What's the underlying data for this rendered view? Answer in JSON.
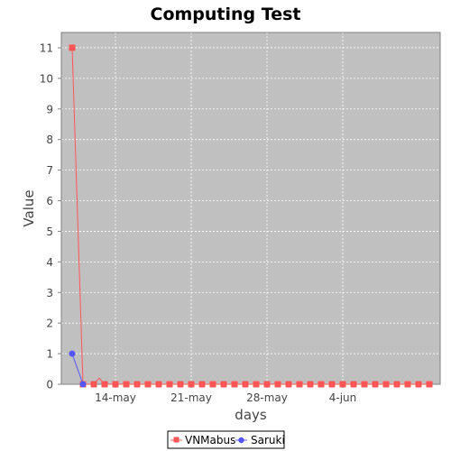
{
  "chart_data": {
    "type": "line",
    "title": "Computing Test",
    "xlabel": "days",
    "ylabel": "Value",
    "ylim": [
      0,
      11.5
    ],
    "y_ticks": [
      0,
      1,
      2,
      3,
      4,
      5,
      6,
      7,
      8,
      9,
      10,
      11
    ],
    "x_range": [
      "2024-05-09",
      "2024-06-13"
    ],
    "x_ticks": [
      {
        "date": "2024-05-14",
        "label": "14-may"
      },
      {
        "date": "2024-05-21",
        "label": "21-may"
      },
      {
        "date": "2024-05-28",
        "label": "28-may"
      },
      {
        "date": "2024-06-04",
        "label": "4-jun"
      }
    ],
    "grid": true,
    "legend_position": "bottom",
    "plot_background": "#c0c0c0",
    "series": [
      {
        "name": "VNMabus",
        "color": "#ff5555",
        "marker": "square",
        "points": [
          {
            "x": "2024-05-10",
            "y": 11
          },
          {
            "x": "2024-05-11",
            "y": 0
          },
          {
            "x": "2024-05-12",
            "y": 0
          },
          {
            "x": "2024-05-12T12:00",
            "y": 0.2
          },
          {
            "x": "2024-05-13",
            "y": 0
          },
          {
            "x": "2024-05-14",
            "y": 0
          },
          {
            "x": "2024-05-15",
            "y": 0
          },
          {
            "x": "2024-05-16",
            "y": 0
          },
          {
            "x": "2024-05-17",
            "y": 0
          },
          {
            "x": "2024-05-18",
            "y": 0
          },
          {
            "x": "2024-05-19",
            "y": 0
          },
          {
            "x": "2024-05-20",
            "y": 0
          },
          {
            "x": "2024-05-21",
            "y": 0
          },
          {
            "x": "2024-05-22",
            "y": 0
          },
          {
            "x": "2024-05-23",
            "y": 0
          },
          {
            "x": "2024-05-24",
            "y": 0
          },
          {
            "x": "2024-05-25",
            "y": 0
          },
          {
            "x": "2024-05-26",
            "y": 0
          },
          {
            "x": "2024-05-27",
            "y": 0
          },
          {
            "x": "2024-05-28",
            "y": 0
          },
          {
            "x": "2024-05-29",
            "y": 0
          },
          {
            "x": "2024-05-30",
            "y": 0
          },
          {
            "x": "2024-05-31",
            "y": 0
          },
          {
            "x": "2024-06-01",
            "y": 0
          },
          {
            "x": "2024-06-02",
            "y": 0
          },
          {
            "x": "2024-06-03",
            "y": 0
          },
          {
            "x": "2024-06-04",
            "y": 0
          },
          {
            "x": "2024-06-05",
            "y": 0
          },
          {
            "x": "2024-06-06",
            "y": 0
          },
          {
            "x": "2024-06-07",
            "y": 0
          },
          {
            "x": "2024-06-08",
            "y": 0
          },
          {
            "x": "2024-06-09",
            "y": 0
          },
          {
            "x": "2024-06-10",
            "y": 0
          },
          {
            "x": "2024-06-11",
            "y": 0
          },
          {
            "x": "2024-06-12",
            "y": 0
          }
        ]
      },
      {
        "name": "Saruki",
        "color": "#5555ff",
        "marker": "circle",
        "points": [
          {
            "x": "2024-05-10",
            "y": 1
          },
          {
            "x": "2024-05-11",
            "y": 0
          }
        ]
      }
    ]
  }
}
